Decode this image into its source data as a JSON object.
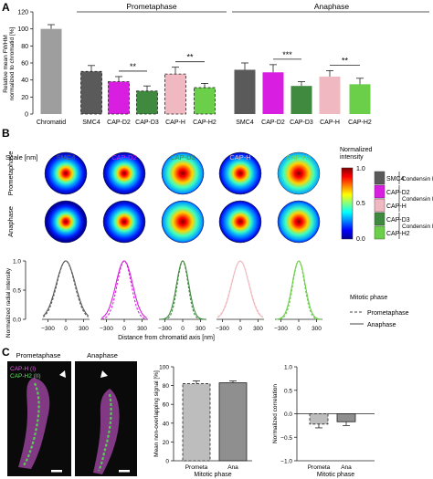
{
  "panels": {
    "a": "A",
    "b": "B",
    "c": "C"
  },
  "colors": {
    "SMC4": "#5a5a5a",
    "CAP-D2": "#d81ee0",
    "CAP-D3": "#3f8a3f",
    "CAP-H": "#f0b8c0",
    "CAP-H2": "#6ccf4a",
    "Chromatid": "#9e9e9e"
  },
  "chart_a": {
    "type": "bar",
    "ylabel": "Relative mean FWHM\nnormalized to chromatid [%]",
    "ylim": [
      0,
      120
    ],
    "yticks": [
      "0",
      "20",
      "40",
      "60",
      "80",
      "100",
      "120"
    ],
    "phase_labels": {
      "prometaphase": "Prometaphase",
      "anaphase": "Anaphase"
    },
    "significance": [
      {
        "phase": "prometaphase",
        "from": "CAP-D2",
        "to": "CAP-D3",
        "label": "**"
      },
      {
        "phase": "prometaphase",
        "from": "CAP-H",
        "to": "CAP-H2",
        "label": "**"
      },
      {
        "phase": "anaphase",
        "from": "CAP-D2",
        "to": "CAP-D3",
        "label": "***"
      },
      {
        "phase": "anaphase",
        "from": "CAP-H",
        "to": "CAP-H2",
        "label": "**"
      }
    ]
  },
  "chart_data": [
    {
      "type": "bar",
      "title": "",
      "ylabel": "Relative mean FWHM normalized to chromatid [%]",
      "ylim": [
        0,
        120
      ],
      "bars": [
        {
          "group": "",
          "label": "Chromatid",
          "value": 100,
          "error": 5
        },
        {
          "group": "Prometaphase",
          "label": "SMC4",
          "value": 50,
          "error": 7
        },
        {
          "group": "Prometaphase",
          "label": "CAP-D2",
          "value": 38,
          "error": 6
        },
        {
          "group": "Prometaphase",
          "label": "CAP-D3",
          "value": 27,
          "error": 6
        },
        {
          "group": "Prometaphase",
          "label": "CAP-H",
          "value": 47,
          "error": 8
        },
        {
          "group": "Prometaphase",
          "label": "CAP-H2",
          "value": 31,
          "error": 5
        },
        {
          "group": "Anaphase",
          "label": "SMC4",
          "value": 52,
          "error": 8
        },
        {
          "group": "Anaphase",
          "label": "CAP-D2",
          "value": 49,
          "error": 9
        },
        {
          "group": "Anaphase",
          "label": "CAP-D3",
          "value": 33,
          "error": 5
        },
        {
          "group": "Anaphase",
          "label": "CAP-H",
          "value": 44,
          "error": 7
        },
        {
          "group": "Anaphase",
          "label": "CAP-H2",
          "value": 35,
          "error": 7
        }
      ],
      "note": "Prometaphase bars drawn with dashed outline, anaphase bars solid."
    },
    {
      "type": "heatmap",
      "title": "",
      "columns": [
        "SMC4",
        "CAP-D2",
        "CAP-D3",
        "CAP-H",
        "CAP-H2"
      ],
      "rows": [
        "Prometaphase",
        "Anaphase"
      ],
      "spot_sharpness": [
        [
          1.0,
          1.0,
          1.5,
          1.1,
          1.6
        ],
        [
          0.9,
          1.0,
          1.5,
          1.1,
          1.4
        ]
      ],
      "colorbar": {
        "label": "Normalized intensity",
        "ticks": [
          "0.0",
          "0.5",
          "1.0"
        ]
      },
      "scale_label": "Scale [nm]",
      "scale_ticks": [
        "−300",
        "0",
        "300"
      ]
    },
    {
      "type": "line",
      "ylabel": "Normalized radial intensity",
      "xlabel": "Distance from chromatid axis [nm]",
      "x_ticks": [
        "−300",
        "0",
        "300"
      ],
      "ylim": [
        0,
        1
      ],
      "profile_widths_nm": {
        "prometaphase": {
          "SMC4": 150,
          "CAP-D2": 118,
          "CAP-D3": 90,
          "CAP-H": 150,
          "CAP-H2": 98
        },
        "anaphase": {
          "SMC4": 160,
          "CAP-D2": 140,
          "CAP-D3": 102,
          "CAP-H": 145,
          "CAP-H2": 108
        }
      },
      "legend_title": "Mitotic phase",
      "legend": [
        "Prometaphase",
        "Anaphase"
      ]
    },
    {
      "type": "bar",
      "ylabel": "Mean non-overlapping signal [%]",
      "xlabel": "Mitotic phase",
      "categories": [
        "Prometa",
        "Ana"
      ],
      "values": [
        82,
        83
      ],
      "errors": [
        3,
        2
      ],
      "ylim": [
        0,
        100
      ],
      "yticks": [
        "0",
        "20",
        "40",
        "60",
        "80",
        "100"
      ]
    },
    {
      "type": "bar",
      "ylabel": "Normalized correlation",
      "xlabel": "Mitotic phase",
      "categories": [
        "Prometa",
        "Ana"
      ],
      "values": [
        -0.22,
        -0.17
      ],
      "errors": [
        0.08,
        0.08
      ],
      "ylim": [
        -1.0,
        1.0
      ],
      "yticks": [
        "−1.0",
        "−0.5",
        "0.0",
        "0.5",
        "1.0"
      ]
    }
  ],
  "legend_b": {
    "items": [
      "SMC4",
      "CAP-D2",
      "CAP-H",
      "CAP-D3",
      "CAP-H2"
    ],
    "condensin_I_plus_II": "Condensin I+II",
    "condensin_I": "Condensin I",
    "condensin_II": "Condensin II"
  },
  "panel_c": {
    "prometaphase_title": "Prometaphase",
    "anaphase_title": "Anaphase",
    "legend_line1": "CAP-H (I)",
    "legend_line2": "CAP-H2 (II)"
  }
}
